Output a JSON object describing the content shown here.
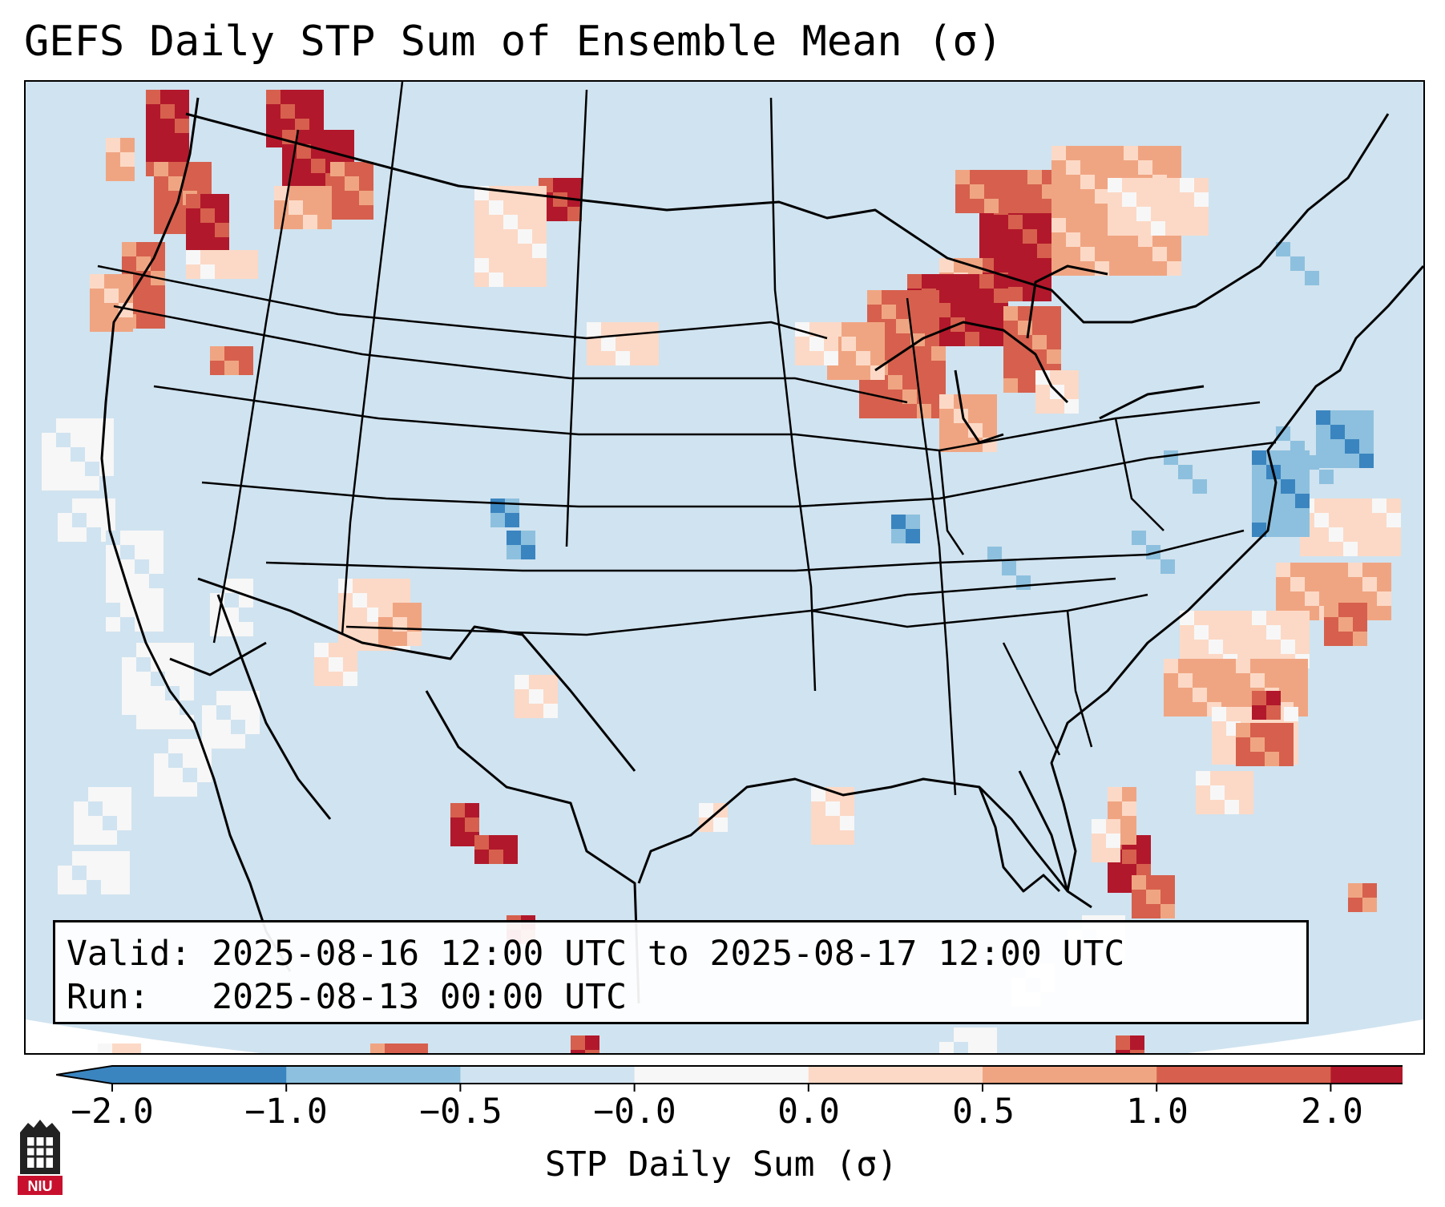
{
  "title": "GEFS Daily STP Sum of Ensemble Mean (σ)",
  "info": {
    "valid_label": "Valid:",
    "valid_value": "2025-08-16 12:00 UTC to 2025-08-17 12:00 UTC",
    "run_label": "Run:",
    "run_value": "2025-08-13 00:00 UTC"
  },
  "colorbar": {
    "label": "STP Daily Sum (σ)",
    "ticks": [
      "−2.0",
      "−1.0",
      "−0.5",
      "−0.0",
      "0.0",
      "0.5",
      "1.0",
      "2.0"
    ],
    "colors": [
      "#3a85c0",
      "#8dc0de",
      "#d0e3f0",
      "#f7f7f7",
      "#fcd9c6",
      "#f0a582",
      "#d6604d",
      "#b2182b"
    ]
  },
  "map": {
    "region": "Contiguous United States",
    "projection_note": "Lambert conformal",
    "colors": {
      "background": "#d0e3f0",
      "outside": "#ffffff",
      "land_lines": "#000000"
    }
  },
  "logo": {
    "text": "NIU"
  }
}
